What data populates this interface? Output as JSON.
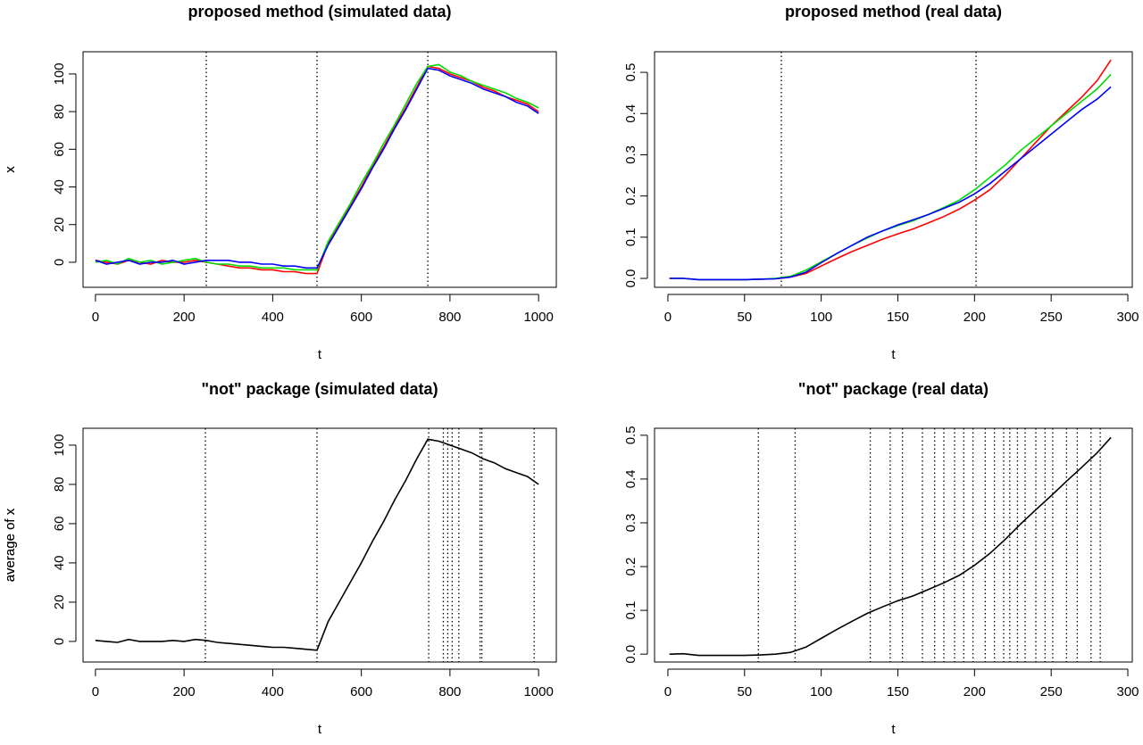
{
  "chart_data": [
    {
      "type": "line",
      "title": "proposed method (simulated data)",
      "xlabel": "t",
      "ylabel": "x",
      "x": [
        0,
        25,
        50,
        75,
        100,
        125,
        150,
        175,
        200,
        225,
        250,
        275,
        300,
        325,
        350,
        375,
        400,
        425,
        450,
        475,
        500,
        525,
        550,
        575,
        600,
        625,
        650,
        675,
        700,
        725,
        750,
        775,
        800,
        825,
        850,
        875,
        900,
        925,
        950,
        975,
        1000
      ],
      "series": [
        {
          "color": "#ff0000",
          "values": [
            1,
            0,
            -1,
            1,
            0,
            -1,
            1,
            0,
            0,
            1,
            0,
            -1,
            -2,
            -3,
            -3,
            -4,
            -4,
            -5,
            -5,
            -6,
            -6,
            10,
            20,
            30,
            40,
            51,
            61,
            72,
            82,
            93,
            104,
            103,
            100,
            98,
            96,
            93,
            91,
            88,
            86,
            84,
            80
          ]
        },
        {
          "color": "#00dd00",
          "values": [
            0,
            1,
            -1,
            2,
            0,
            1,
            -1,
            0,
            1,
            2,
            0,
            -1,
            -1,
            -2,
            -2,
            -3,
            -3,
            -3,
            -4,
            -4,
            -4,
            11,
            21,
            31,
            42,
            52,
            63,
            73,
            84,
            95,
            104,
            105,
            101,
            99,
            96,
            94,
            92,
            90,
            87,
            85,
            82
          ]
        },
        {
          "color": "#0000ff",
          "values": [
            1,
            -1,
            0,
            1,
            -1,
            0,
            0,
            1,
            -1,
            0,
            1,
            1,
            1,
            0,
            0,
            -1,
            -1,
            -2,
            -2,
            -3,
            -3,
            9,
            19,
            29,
            39,
            50,
            60,
            71,
            81,
            92,
            103,
            102,
            99,
            97,
            95,
            92,
            90,
            88,
            85,
            83,
            79
          ]
        }
      ],
      "changepoints": [
        250,
        500,
        750
      ],
      "xlim": [
        -28,
        1040
      ],
      "ylim": [
        -13.3,
        111.8
      ],
      "xticks": [
        0,
        200,
        400,
        600,
        800,
        1000
      ],
      "yticks": [
        0,
        20,
        40,
        60,
        80,
        100
      ]
    },
    {
      "type": "line",
      "title": "proposed method (real data)",
      "xlabel": "t",
      "ylabel": "x",
      "x": [
        1,
        10,
        20,
        30,
        40,
        50,
        60,
        70,
        80,
        90,
        100,
        110,
        120,
        130,
        140,
        150,
        160,
        170,
        180,
        190,
        200,
        210,
        220,
        230,
        240,
        250,
        260,
        270,
        280,
        289
      ],
      "series": [
        {
          "color": "#ff0000",
          "values": [
            0,
            0,
            -0.003,
            -0.003,
            -0.003,
            -0.003,
            -0.002,
            -0.001,
            0.003,
            0.012,
            0.03,
            0.048,
            0.065,
            0.08,
            0.095,
            0.108,
            0.12,
            0.135,
            0.15,
            0.168,
            0.19,
            0.215,
            0.25,
            0.29,
            0.33,
            0.37,
            0.405,
            0.44,
            0.48,
            0.53
          ]
        },
        {
          "color": "#00dd00",
          "values": [
            0,
            0,
            -0.003,
            -0.003,
            -0.003,
            -0.003,
            -0.002,
            0,
            0.005,
            0.02,
            0.04,
            0.06,
            0.08,
            0.098,
            0.115,
            0.128,
            0.14,
            0.155,
            0.172,
            0.19,
            0.215,
            0.245,
            0.275,
            0.31,
            0.34,
            0.37,
            0.4,
            0.43,
            0.46,
            0.495
          ]
        },
        {
          "color": "#0000ff",
          "values": [
            0,
            0,
            -0.003,
            -0.003,
            -0.003,
            -0.003,
            -0.002,
            -0.001,
            0.003,
            0.015,
            0.038,
            0.06,
            0.08,
            0.1,
            0.115,
            0.13,
            0.142,
            0.155,
            0.17,
            0.185,
            0.205,
            0.23,
            0.26,
            0.29,
            0.32,
            0.35,
            0.38,
            0.41,
            0.435,
            0.465
          ]
        }
      ],
      "changepoints": [
        74,
        201
      ],
      "xlim": [
        -8.7,
        302.9
      ],
      "ylim": [
        -0.0216,
        0.55
      ],
      "xticks": [
        0,
        50,
        100,
        150,
        200,
        250,
        300
      ],
      "yticks": [
        {
          "value": 0,
          "label": "0.0"
        },
        0.1,
        0.2,
        0.3,
        0.4,
        0.5
      ]
    },
    {
      "type": "line",
      "title": "\"not\" package (simulated data)",
      "xlabel": "t",
      "ylabel": "average of x",
      "x": [
        0,
        25,
        50,
        75,
        100,
        125,
        150,
        175,
        200,
        225,
        250,
        275,
        300,
        325,
        350,
        375,
        400,
        425,
        450,
        475,
        500,
        525,
        550,
        575,
        600,
        625,
        650,
        675,
        700,
        725,
        750,
        775,
        800,
        825,
        850,
        875,
        900,
        925,
        950,
        975,
        1000
      ],
      "series": [
        {
          "color": "#000000",
          "values": [
            0.5,
            0,
            -0.5,
            1,
            0,
            0,
            0,
            0.5,
            0,
            1,
            0.5,
            -0.5,
            -1,
            -1.5,
            -2,
            -2.5,
            -3,
            -3,
            -3.5,
            -4,
            -4.5,
            10,
            20,
            30,
            40,
            51,
            61,
            72,
            82,
            93,
            103,
            102,
            100,
            98,
            96,
            93,
            91,
            88,
            86,
            84,
            80
          ]
        }
      ],
      "changepoints": [
        248,
        500,
        752,
        785,
        795,
        805,
        820,
        868,
        872,
        990
      ],
      "xlim": [
        -28,
        1040
      ],
      "ylim": [
        -10.5,
        108.6
      ],
      "xticks": [
        0,
        200,
        400,
        600,
        800,
        1000
      ],
      "yticks": [
        0,
        20,
        40,
        60,
        80,
        100
      ]
    },
    {
      "type": "line",
      "title": "\"not\" package (real data)",
      "xlabel": "t",
      "ylabel": "average of x",
      "x": [
        1,
        10,
        20,
        30,
        40,
        50,
        60,
        70,
        80,
        90,
        100,
        110,
        120,
        130,
        140,
        150,
        160,
        170,
        180,
        190,
        200,
        210,
        220,
        230,
        240,
        250,
        260,
        270,
        280,
        289
      ],
      "series": [
        {
          "color": "#000000",
          "values": [
            0,
            0.001,
            -0.003,
            -0.003,
            -0.003,
            -0.003,
            -0.002,
            0,
            0.004,
            0.016,
            0.036,
            0.056,
            0.075,
            0.093,
            0.108,
            0.122,
            0.133,
            0.148,
            0.163,
            0.18,
            0.203,
            0.23,
            0.262,
            0.297,
            0.33,
            0.362,
            0.395,
            0.427,
            0.46,
            0.495
          ]
        }
      ],
      "changepoints": [
        59,
        83,
        132,
        145,
        153,
        166,
        174,
        180,
        187,
        193,
        199,
        207,
        213,
        219,
        223,
        228,
        233,
        240,
        246,
        251,
        260,
        267,
        276,
        282
      ],
      "xlim": [
        -8.7,
        302.9
      ],
      "ylim": [
        -0.018,
        0.516
      ],
      "xticks": [
        0,
        50,
        100,
        150,
        200,
        250,
        300
      ],
      "yticks": [
        {
          "value": 0,
          "label": "0.0"
        },
        0.1,
        0.2,
        0.3,
        0.4,
        0.5
      ]
    }
  ]
}
